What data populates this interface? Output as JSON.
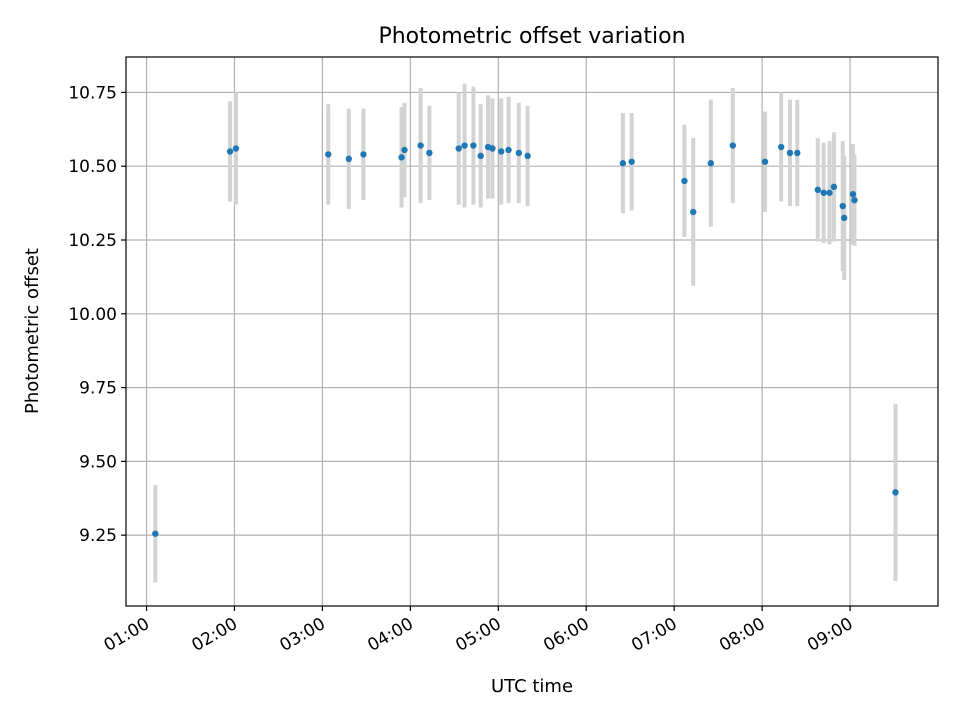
{
  "chart_data": {
    "type": "scatter",
    "title": "Photometric offset variation",
    "xlabel": "UTC time",
    "ylabel": "Photometric offset",
    "grid": true,
    "x_tick_labels": [
      "01:00",
      "02:00",
      "03:00",
      "04:00",
      "05:00",
      "06:00",
      "07:00",
      "08:00",
      "09:00"
    ],
    "y_tick_labels": [
      "9.25",
      "9.50",
      "9.75",
      "10.00",
      "10.25",
      "10.50",
      "10.75"
    ],
    "x_tick_hours": [
      1,
      2,
      3,
      4,
      5,
      6,
      7,
      8,
      9
    ],
    "y_ticks": [
      9.25,
      9.5,
      9.75,
      10.0,
      10.25,
      10.5,
      10.75
    ],
    "xlim": [
      "00:46",
      "10:00"
    ],
    "ylim": [
      9.01,
      10.87
    ],
    "point_color": "#1f77b4",
    "errorbar_color": "#d3d3d3",
    "points": [
      {
        "x": "01:06",
        "y": 9.255,
        "err": 0.165
      },
      {
        "x": "01:57",
        "y": 10.55,
        "err": 0.17
      },
      {
        "x": "02:01",
        "y": 10.56,
        "err": 0.19
      },
      {
        "x": "03:04",
        "y": 10.54,
        "err": 0.17
      },
      {
        "x": "03:18",
        "y": 10.525,
        "err": 0.17
      },
      {
        "x": "03:28",
        "y": 10.54,
        "err": 0.155
      },
      {
        "x": "03:54",
        "y": 10.53,
        "err": 0.17
      },
      {
        "x": "03:56",
        "y": 10.555,
        "err": 0.16
      },
      {
        "x": "04:07",
        "y": 10.57,
        "err": 0.195
      },
      {
        "x": "04:13",
        "y": 10.545,
        "err": 0.16
      },
      {
        "x": "04:33",
        "y": 10.56,
        "err": 0.19
      },
      {
        "x": "04:37",
        "y": 10.57,
        "err": 0.21
      },
      {
        "x": "04:43",
        "y": 10.57,
        "err": 0.2
      },
      {
        "x": "04:48",
        "y": 10.535,
        "err": 0.175
      },
      {
        "x": "04:53",
        "y": 10.565,
        "err": 0.175
      },
      {
        "x": "04:56",
        "y": 10.56,
        "err": 0.17
      },
      {
        "x": "05:02",
        "y": 10.55,
        "err": 0.18
      },
      {
        "x": "05:07",
        "y": 10.555,
        "err": 0.18
      },
      {
        "x": "05:14",
        "y": 10.545,
        "err": 0.17
      },
      {
        "x": "05:20",
        "y": 10.535,
        "err": 0.17
      },
      {
        "x": "06:25",
        "y": 10.51,
        "err": 0.17
      },
      {
        "x": "06:31",
        "y": 10.515,
        "err": 0.165
      },
      {
        "x": "07:07",
        "y": 10.45,
        "err": 0.19
      },
      {
        "x": "07:13",
        "y": 10.345,
        "err": 0.25
      },
      {
        "x": "07:25",
        "y": 10.51,
        "err": 0.215
      },
      {
        "x": "07:40",
        "y": 10.57,
        "err": 0.195
      },
      {
        "x": "08:02",
        "y": 10.515,
        "err": 0.17
      },
      {
        "x": "08:13",
        "y": 10.565,
        "err": 0.185
      },
      {
        "x": "08:19",
        "y": 10.545,
        "err": 0.18
      },
      {
        "x": "08:24",
        "y": 10.545,
        "err": 0.18
      },
      {
        "x": "08:38",
        "y": 10.42,
        "err": 0.175
      },
      {
        "x": "08:42",
        "y": 10.41,
        "err": 0.17
      },
      {
        "x": "08:46",
        "y": 10.41,
        "err": 0.175
      },
      {
        "x": "08:49",
        "y": 10.43,
        "err": 0.185
      },
      {
        "x": "08:55",
        "y": 10.365,
        "err": 0.22
      },
      {
        "x": "08:56",
        "y": 10.325,
        "err": 0.21
      },
      {
        "x": "09:02",
        "y": 10.405,
        "err": 0.17
      },
      {
        "x": "09:03",
        "y": 10.385,
        "err": 0.155
      },
      {
        "x": "09:31",
        "y": 9.395,
        "err": 0.3
      }
    ]
  }
}
